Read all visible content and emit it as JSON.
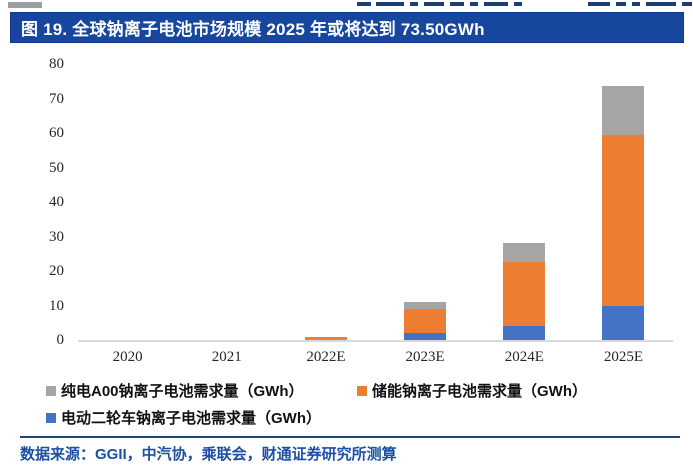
{
  "title": "图 19. 全球钠离子电池市场规模 2025 年或将达到 73.50GWh",
  "source": "数据来源：GGII，中汽协，乘联会，财通证券研究所测算",
  "colors": {
    "blue": "#4472C4",
    "orange": "#ED7D31",
    "gray": "#A5A5A5",
    "banner": "#17469E",
    "axis_line": "#D9D9D9",
    "source_text": "#1D50A2"
  },
  "chart_data": {
    "type": "bar",
    "stacked": true,
    "title": "全球钠离子电池市场规模 2025 年或将达到 73.50GWh",
    "categories": [
      "2020",
      "2021",
      "2022E",
      "2023E",
      "2024E",
      "2025E"
    ],
    "series": [
      {
        "name": "电动二轮车钠离子电池需求量（GWh）",
        "color_key": "blue",
        "values": [
          0,
          0,
          0,
          2,
          4,
          10
        ]
      },
      {
        "name": "储能钠离子电池需求量（GWh）",
        "color_key": "orange",
        "values": [
          0,
          0,
          1,
          7,
          18.5,
          49.5
        ]
      },
      {
        "name": "纯电A00钠离子电池需求量（GWh）",
        "color_key": "gray",
        "values": [
          0,
          0,
          0,
          2,
          5.5,
          14
        ]
      }
    ],
    "totals": [
      0,
      0,
      1,
      11,
      28,
      73.5
    ],
    "xlabel": "",
    "ylabel": "",
    "ylim": [
      0,
      80
    ],
    "yticks": [
      0,
      10,
      20,
      30,
      40,
      50,
      60,
      70,
      80
    ],
    "grid": false,
    "legend_position": "bottom"
  },
  "legend": {
    "items": [
      {
        "label": "纯电A00钠离子电池需求量（GWh）",
        "color_key": "gray"
      },
      {
        "label": "储能钠离子电池需求量（GWh）",
        "color_key": "orange"
      },
      {
        "label": "电动二轮车钠离子电池需求量（GWh）",
        "color_key": "blue"
      }
    ]
  }
}
